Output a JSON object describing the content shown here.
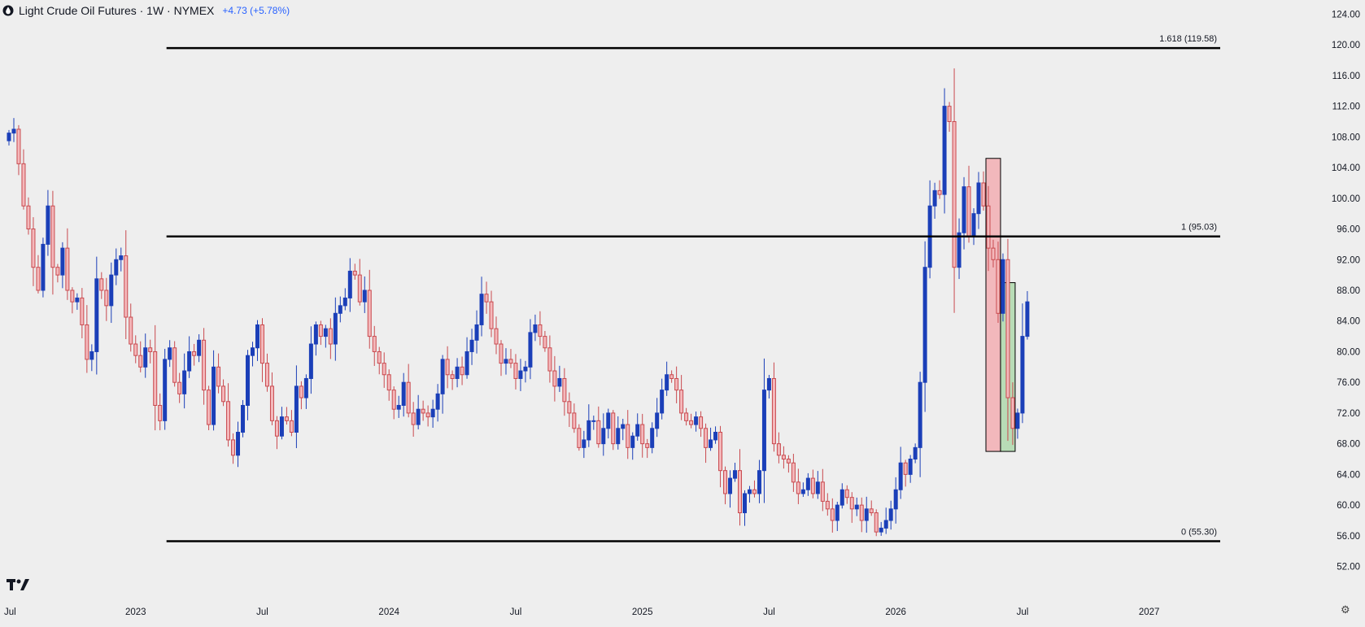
{
  "header": {
    "title": "Light Crude Oil Futures · 1W · NYMEX",
    "change": "+4.73 (+5.78%)"
  },
  "icons": {
    "symbol": "oil-drop-icon",
    "logo": "tradingview-logo-icon",
    "settings": "gear-icon"
  },
  "colors": {
    "background": "#eeeeee",
    "up": "#1b3fb8",
    "down": "#c94a4f",
    "down_fill": "#f4b8bb",
    "highlight_red": "#f2b8bc",
    "highlight_green": "#b8dcb6",
    "level_line": "#000000",
    "axis_text": "#131722"
  },
  "chart_data": {
    "type": "candlestick",
    "title": "Light Crude Oil Futures",
    "timeframe": "1W",
    "exchange": "NYMEX",
    "ylim": [
      51,
      125
    ],
    "y_ticks": [
      "52.00",
      "56.00",
      "60.00",
      "64.00",
      "68.00",
      "72.00",
      "76.00",
      "80.00",
      "84.00",
      "88.00",
      "92.00",
      "96.00",
      "100.00",
      "104.00",
      "108.00",
      "112.00",
      "116.00",
      "120.00",
      "124.00"
    ],
    "x_labels": [
      "Jul",
      "2023",
      "Jul",
      "2024",
      "Jul",
      "2025",
      "Jul",
      "2026",
      "Jul",
      "2027"
    ],
    "x_label_weeks": [
      0,
      26,
      52,
      78,
      104,
      130,
      156,
      182,
      208,
      234
    ],
    "levels": [
      {
        "label": "1.618 (119.58)",
        "value": 119.58,
        "start_week": 32
      },
      {
        "label": "1 (95.03)",
        "value": 95.03,
        "start_week": 32
      },
      {
        "label": "0 (55.30)",
        "value": 55.3,
        "start_week": 32
      }
    ],
    "highlight_boxes": [
      {
        "color": "red",
        "start_week": 200.5,
        "end_week": 203.5,
        "low": 67.0,
        "high": 105.2
      },
      {
        "color": "green",
        "start_week": 203.5,
        "end_week": 206.5,
        "low": 67.0,
        "high": 89.0
      }
    ],
    "weekly_closes": [
      108.5,
      109.0,
      104.5,
      99.0,
      96.0,
      91.0,
      88.0,
      94.0,
      99.0,
      91.0,
      90.0,
      93.5,
      88.0,
      86.5,
      87.0,
      83.5,
      79.0,
      80.0,
      89.5,
      88.0,
      86.0,
      90.0,
      92.0,
      92.5,
      84.5,
      81.0,
      79.5,
      78.0,
      80.5,
      80.0,
      73.0,
      71.0,
      79.0,
      80.5,
      76.0,
      74.5,
      77.5,
      80.0,
      79.5,
      81.5,
      75.0,
      70.5,
      78.0,
      75.5,
      73.5,
      68.5,
      66.5,
      69.5,
      73.0,
      79.5,
      80.5,
      83.5,
      78.5,
      75.5,
      71.0,
      69.0,
      71.5,
      71.0,
      69.5,
      75.5,
      74.0,
      76.5,
      81.0,
      83.5,
      82.0,
      83.0,
      81.0,
      85.0,
      86.0,
      87.0,
      90.5,
      90.0,
      86.5,
      88.0,
      82.0,
      80.0,
      78.5,
      77.0,
      75.0,
      72.5,
      73.0,
      76.0,
      72.0,
      70.5,
      72.5,
      72.0,
      71.5,
      72.5,
      74.5,
      79.0,
      77.0,
      76.5,
      78.0,
      77.0,
      80.0,
      81.5,
      83.5,
      87.5,
      86.5,
      83.0,
      81.0,
      78.5,
      79.0,
      78.5,
      76.5,
      77.5,
      78.0,
      82.5,
      83.5,
      82.0,
      80.5,
      77.5,
      75.5,
      76.5,
      73.5,
      72.0,
      70.0,
      67.5,
      68.5,
      71.0,
      71.0,
      68.0,
      70.0,
      72.0,
      68.0,
      70.0,
      70.5,
      67.5,
      69.0,
      70.5,
      68.0,
      67.5,
      70.0,
      72.0,
      75.0,
      77.0,
      76.5,
      75.0,
      72.0,
      71.0,
      70.5,
      71.5,
      70.0,
      67.5,
      68.5,
      69.5,
      64.5,
      61.5,
      63.5,
      64.5,
      59.0,
      61.5,
      62.0,
      61.5,
      64.5,
      75.0,
      76.5,
      68.0,
      66.5,
      66.0,
      65.5,
      63.0,
      61.5,
      62.0,
      63.5,
      61.5,
      63.0,
      60.5,
      59.5,
      58.0,
      60.0,
      62.0,
      61.0,
      59.5,
      60.0,
      58.0,
      59.5,
      59.0,
      56.5,
      57.0,
      58.0,
      59.5,
      62.0,
      65.5,
      64.0,
      66.0,
      67.5,
      76.0,
      91.0,
      99.0,
      101.0,
      100.5,
      112.0,
      110.0,
      91.0,
      95.5,
      101.5,
      95.0,
      98.0,
      102.0,
      99.0,
      93.5,
      92.0,
      85.0,
      92.0,
      74.0,
      70.0,
      72.0,
      82.0,
      86.5
    ]
  }
}
